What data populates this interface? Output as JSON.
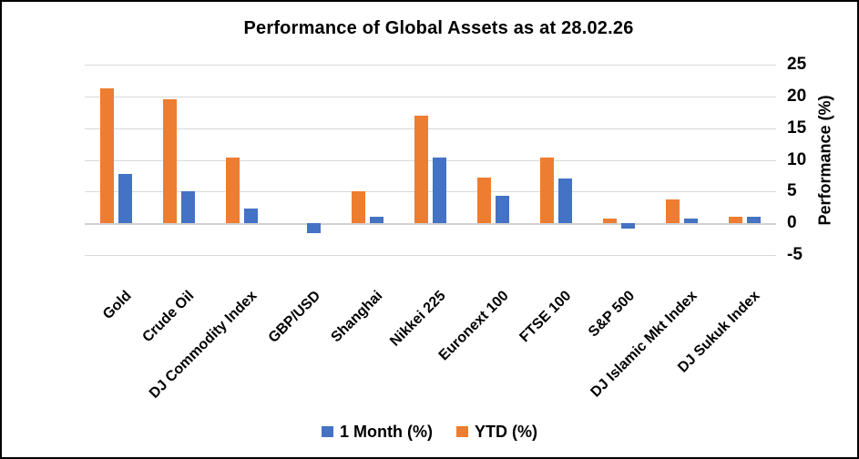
{
  "chart_data": {
    "type": "bar",
    "title": "Performance of Global Assets as at 28.02.26",
    "ylabel": "Performance (%)",
    "ylim": [
      -5,
      25
    ],
    "yticks": [
      25,
      20,
      15,
      10,
      5,
      0,
      -5
    ],
    "grid": true,
    "legend_position": "bottom",
    "categories": [
      "Gold",
      "Crude Oil",
      "DJ Commodity Index",
      "GBP/USD",
      "Shanghai",
      "Nikkei 225",
      "Euronext 100",
      "FTSE 100",
      "S&P 500",
      "DJ Islamic Mkt Index",
      "DJ Sukuk Index"
    ],
    "series": [
      {
        "name": "YTD (%)",
        "color": "#ED7D31",
        "values": [
          21.3,
          19.6,
          10.4,
          0,
          5.0,
          17.0,
          7.2,
          10.3,
          0.7,
          3.8,
          1.0
        ]
      },
      {
        "name": "1 Month (%)",
        "color": "#4472C4",
        "values": [
          7.8,
          5.1,
          2.3,
          -1.6,
          1.1,
          10.4,
          4.3,
          7.1,
          -0.8,
          0.8,
          1.1
        ]
      }
    ],
    "bar_draw_order": [
      "YTD (%)",
      "1 Month (%)"
    ],
    "legend": [
      {
        "label": "1 Month (%)",
        "color": "#4472C4"
      },
      {
        "label": "YTD (%)",
        "color": "#ED7D31"
      }
    ]
  },
  "colors": {
    "blue": "#4472C4",
    "orange": "#ED7D31",
    "gridline": "#D9D9D9",
    "zero_line": "#D0D0D0",
    "text": "#000000",
    "background": "#FFFFFF",
    "border": "#000000"
  }
}
